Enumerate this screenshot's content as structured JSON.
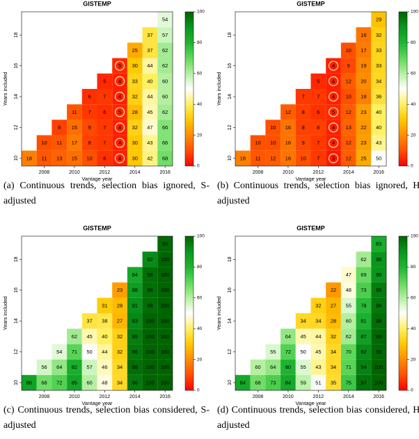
{
  "chart_data": [
    {
      "type": "heatmap",
      "title": "GISTEMP",
      "x_label": "Vantage year",
      "y_label": "Years included",
      "caption": "(a) Continuous trends, selection bias ignored, S-adjusted",
      "x": [
        2007,
        2008,
        2009,
        2010,
        2011,
        2012,
        2013,
        2014,
        2015,
        2016
      ],
      "y": [
        10,
        11,
        12,
        13,
        14,
        15,
        16,
        17,
        18,
        19
      ],
      "values": [
        [
          18,
          11,
          13,
          15,
          10,
          6,
          4,
          30,
          42,
          68
        ],
        [
          null,
          10,
          11,
          17,
          8,
          7,
          4,
          30,
          43,
          66
        ],
        [
          null,
          null,
          8,
          15,
          9,
          7,
          4,
          32,
          47,
          66
        ],
        [
          null,
          null,
          null,
          11,
          7,
          6,
          5,
          28,
          45,
          62
        ],
        [
          null,
          null,
          null,
          null,
          6,
          7,
          4,
          32,
          44,
          60
        ],
        [
          null,
          null,
          null,
          null,
          null,
          5,
          4,
          33,
          40,
          60
        ],
        [
          null,
          null,
          null,
          null,
          null,
          null,
          5,
          30,
          44,
          62
        ],
        [
          null,
          null,
          null,
          null,
          null,
          null,
          null,
          25,
          37,
          62
        ],
        [
          null,
          null,
          null,
          null,
          null,
          null,
          null,
          null,
          37,
          57
        ],
        [
          null,
          null,
          null,
          null,
          null,
          null,
          null,
          null,
          null,
          54
        ]
      ],
      "circled_x": 2013,
      "xlim": [
        2006.5,
        2016.5
      ],
      "ylim": [
        9.5,
        19.5
      ],
      "xticks": [
        2008,
        2010,
        2012,
        2014,
        2016
      ],
      "yticks": [
        10,
        12,
        14,
        16,
        18
      ],
      "clim": [
        0,
        100
      ],
      "colorbar_ticks": [
        0,
        20,
        40,
        60,
        80,
        100
      ],
      "colormap": [
        "#ff0000",
        "#ff5000",
        "#ff8c00",
        "#ffc800",
        "#fff060",
        "#ffffff",
        "#b4f0a0",
        "#5fd85a",
        "#1eb432",
        "#0a961e",
        "#006400"
      ]
    },
    {
      "type": "heatmap",
      "title": "GISTEMP",
      "x_label": "Vantage year",
      "y_label": "Years included",
      "caption": "(b) Continuous trends, selection bias ignored, H-adjusted",
      "x": [
        2007,
        2008,
        2009,
        2010,
        2011,
        2012,
        2013,
        2014,
        2015,
        2016
      ],
      "y": [
        10,
        11,
        12,
        13,
        14,
        15,
        16,
        17,
        18,
        19
      ],
      "values": [
        [
          18,
          11,
          12,
          16,
          10,
          7,
          3,
          12,
          25,
          50
        ],
        [
          null,
          10,
          10,
          16,
          9,
          7,
          4,
          12,
          23,
          43
        ],
        [
          null,
          null,
          10,
          16,
          8,
          8,
          4,
          13,
          22,
          40
        ],
        [
          null,
          null,
          null,
          12,
          8,
          6,
          5,
          12,
          23,
          40
        ],
        [
          null,
          null,
          null,
          null,
          7,
          7,
          4,
          10,
          18,
          36
        ],
        [
          null,
          null,
          null,
          null,
          null,
          5,
          4,
          12,
          20,
          34
        ],
        [
          null,
          null,
          null,
          null,
          null,
          null,
          4,
          9,
          19,
          33
        ],
        [
          null,
          null,
          null,
          null,
          null,
          null,
          null,
          10,
          17,
          33
        ],
        [
          null,
          null,
          null,
          null,
          null,
          null,
          null,
          null,
          16,
          32
        ],
        [
          null,
          null,
          null,
          null,
          null,
          null,
          null,
          null,
          null,
          29
        ]
      ],
      "circled_x": 2013,
      "xlim": [
        2006.5,
        2016.5
      ],
      "ylim": [
        9.5,
        19.5
      ],
      "xticks": [
        2008,
        2010,
        2012,
        2014,
        2016
      ],
      "yticks": [
        10,
        12,
        14,
        16,
        18
      ],
      "clim": [
        0,
        100
      ],
      "colorbar_ticks": [
        0,
        20,
        40,
        60,
        80,
        100
      ],
      "colormap": [
        "#ff0000",
        "#ff5000",
        "#ff8c00",
        "#ffc800",
        "#fff060",
        "#ffffff",
        "#b4f0a0",
        "#5fd85a",
        "#1eb432",
        "#0a961e",
        "#006400"
      ]
    },
    {
      "type": "heatmap",
      "title": "GISTEMP",
      "x_label": "Vantage year",
      "y_label": "Years included",
      "caption": "(c) Continuous trends, selection bias considered, S-adjusted",
      "x": [
        2007,
        2008,
        2009,
        2010,
        2011,
        2012,
        2013,
        2014,
        2015,
        2016
      ],
      "y": [
        10,
        11,
        12,
        13,
        14,
        15,
        16,
        17,
        18,
        19
      ],
      "values": [
        [
          86,
          68,
          72,
          85,
          60,
          48,
          34,
          96,
          100,
          100
        ],
        [
          null,
          56,
          64,
          82,
          57,
          46,
          34,
          98,
          100,
          100
        ],
        [
          null,
          null,
          54,
          71,
          50,
          44,
          32,
          96,
          100,
          100
        ],
        [
          null,
          null,
          null,
          62,
          45,
          40,
          32,
          95,
          100,
          100
        ],
        [
          null,
          null,
          null,
          null,
          37,
          38,
          27,
          93,
          100,
          100
        ],
        [
          null,
          null,
          null,
          null,
          null,
          31,
          28,
          91,
          98,
          100
        ],
        [
          null,
          null,
          null,
          null,
          null,
          null,
          23,
          88,
          98,
          100
        ],
        [
          null,
          null,
          null,
          null,
          null,
          null,
          null,
          84,
          98,
          100
        ],
        [
          null,
          null,
          null,
          null,
          null,
          null,
          null,
          null,
          92,
          100
        ],
        [
          null,
          null,
          null,
          null,
          null,
          null,
          null,
          null,
          null,
          99
        ]
      ],
      "xlim": [
        2006.5,
        2016.5
      ],
      "ylim": [
        9.5,
        19.5
      ],
      "xticks": [
        2008,
        2010,
        2012,
        2014,
        2016
      ],
      "yticks": [
        10,
        12,
        14,
        16,
        18
      ],
      "clim": [
        0,
        100
      ],
      "colorbar_ticks": [
        0,
        20,
        40,
        60,
        80,
        100
      ],
      "colormap": [
        "#ff0000",
        "#ff5000",
        "#ff8c00",
        "#ffc800",
        "#fff060",
        "#ffffff",
        "#b4f0a0",
        "#5fd85a",
        "#1eb432",
        "#0a961e",
        "#006400"
      ]
    },
    {
      "type": "heatmap",
      "title": "GISTEMP",
      "x_label": "Vantage year",
      "y_label": "Years included",
      "caption": "(d) Continuous trends, selection bias considered, H-adjusted",
      "x": [
        2007,
        2008,
        2009,
        2010,
        2011,
        2012,
        2013,
        2014,
        2015,
        2016
      ],
      "y": [
        10,
        11,
        12,
        13,
        14,
        15,
        16,
        17,
        18,
        19
      ],
      "values": [
        [
          84,
          68,
          73,
          84,
          59,
          51,
          35,
          75,
          97,
          100
        ],
        [
          null,
          60,
          64,
          80,
          55,
          43,
          34,
          71,
          94,
          100
        ],
        [
          null,
          null,
          55,
          72,
          50,
          45,
          34,
          70,
          92,
          99
        ],
        [
          null,
          null,
          null,
          64,
          45,
          44,
          32,
          62,
          87,
          99
        ],
        [
          null,
          null,
          null,
          null,
          34,
          34,
          28,
          60,
          81,
          98
        ],
        [
          null,
          null,
          null,
          null,
          null,
          32,
          27,
          55,
          78,
          96
        ],
        [
          null,
          null,
          null,
          null,
          null,
          null,
          22,
          48,
          73,
          95
        ],
        [
          null,
          null,
          null,
          null,
          null,
          null,
          null,
          47,
          69,
          90
        ],
        [
          null,
          null,
          null,
          null,
          null,
          null,
          null,
          null,
          62,
          90
        ],
        [
          null,
          null,
          null,
          null,
          null,
          null,
          null,
          null,
          null,
          83
        ]
      ],
      "xlim": [
        2006.5,
        2016.5
      ],
      "ylim": [
        9.5,
        19.5
      ],
      "xticks": [
        2008,
        2010,
        2012,
        2014,
        2016
      ],
      "yticks": [
        10,
        12,
        14,
        16,
        18
      ],
      "clim": [
        0,
        100
      ],
      "colorbar_ticks": [
        0,
        20,
        40,
        60,
        80,
        100
      ],
      "colormap": [
        "#ff0000",
        "#ff5000",
        "#ff8c00",
        "#ffc800",
        "#fff060",
        "#ffffff",
        "#b4f0a0",
        "#5fd85a",
        "#1eb432",
        "#0a961e",
        "#006400"
      ]
    }
  ]
}
